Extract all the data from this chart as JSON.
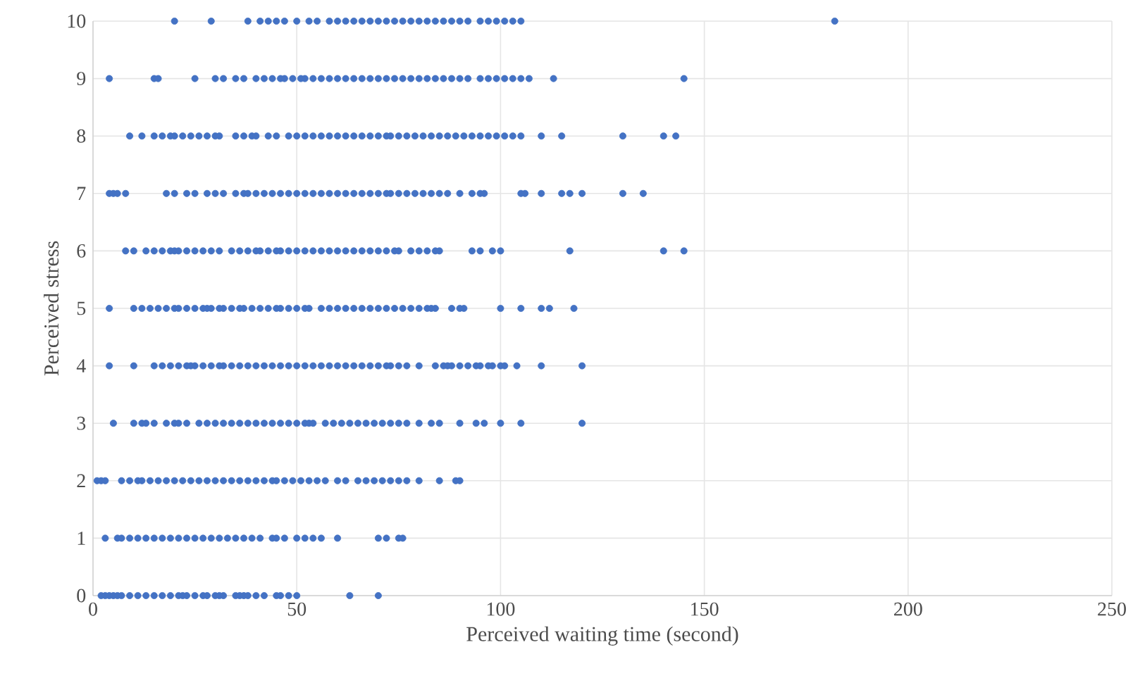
{
  "chart_data": {
    "type": "scatter",
    "xlabel": "Perceived waiting time (second)",
    "ylabel": "Perceived stress",
    "xlim": [
      0,
      250
    ],
    "ylim": [
      0,
      10
    ],
    "xticks": [
      0,
      50,
      100,
      150,
      200,
      250
    ],
    "yticks": [
      0,
      1,
      2,
      3,
      4,
      5,
      6,
      7,
      8,
      9,
      10
    ],
    "grid": true,
    "series": [
      {
        "color": "#4472c4",
        "x": [
          20,
          29,
          38,
          41,
          43,
          45,
          47,
          50,
          53,
          55,
          58,
          60,
          62,
          64,
          66,
          68,
          70,
          72,
          74,
          76,
          78,
          80,
          82,
          84,
          86,
          88,
          90,
          92,
          95,
          97,
          99,
          101,
          103,
          105,
          182
        ],
        "values": [
          10,
          10,
          10,
          10,
          10,
          10,
          10,
          10,
          10,
          10,
          10,
          10,
          10,
          10,
          10,
          10,
          10,
          10,
          10,
          10,
          10,
          10,
          10,
          10,
          10,
          10,
          10,
          10,
          10,
          10,
          10,
          10,
          10,
          10,
          10
        ]
      },
      {
        "color": "#4472c4",
        "x": [
          4,
          15,
          16,
          25,
          30,
          32,
          35,
          37,
          40,
          42,
          44,
          46,
          47,
          49,
          51,
          52,
          54,
          56,
          58,
          60,
          62,
          64,
          66,
          68,
          70,
          72,
          74,
          76,
          78,
          80,
          82,
          84,
          86,
          88,
          90,
          92,
          95,
          97,
          99,
          101,
          103,
          105,
          107,
          113,
          145
        ],
        "values": [
          9,
          9,
          9,
          9,
          9,
          9,
          9,
          9,
          9,
          9,
          9,
          9,
          9,
          9,
          9,
          9,
          9,
          9,
          9,
          9,
          9,
          9,
          9,
          9,
          9,
          9,
          9,
          9,
          9,
          9,
          9,
          9,
          9,
          9,
          9,
          9,
          9,
          9,
          9,
          9,
          9,
          9,
          9,
          9,
          9
        ]
      },
      {
        "color": "#4472c4",
        "x": [
          9,
          12,
          15,
          17,
          19,
          20,
          22,
          24,
          26,
          28,
          30,
          31,
          35,
          37,
          39,
          40,
          43,
          45,
          48,
          50,
          52,
          54,
          56,
          58,
          60,
          62,
          64,
          66,
          68,
          70,
          72,
          73,
          75,
          77,
          79,
          81,
          83,
          85,
          87,
          89,
          91,
          93,
          95,
          97,
          99,
          101,
          103,
          105,
          110,
          115,
          130,
          140,
          143
        ],
        "values": [
          8,
          8,
          8,
          8,
          8,
          8,
          8,
          8,
          8,
          8,
          8,
          8,
          8,
          8,
          8,
          8,
          8,
          8,
          8,
          8,
          8,
          8,
          8,
          8,
          8,
          8,
          8,
          8,
          8,
          8,
          8,
          8,
          8,
          8,
          8,
          8,
          8,
          8,
          8,
          8,
          8,
          8,
          8,
          8,
          8,
          8,
          8,
          8,
          8,
          8,
          8,
          8,
          8
        ]
      },
      {
        "color": "#4472c4",
        "x": [
          4,
          5,
          6,
          8,
          18,
          20,
          23,
          25,
          28,
          30,
          32,
          35,
          37,
          38,
          40,
          42,
          44,
          46,
          48,
          50,
          52,
          54,
          56,
          58,
          60,
          62,
          64,
          66,
          68,
          70,
          72,
          73,
          75,
          77,
          79,
          81,
          83,
          85,
          87,
          90,
          93,
          95,
          96,
          105,
          106,
          110,
          115,
          117,
          120,
          130,
          135
        ],
        "values": [
          7,
          7,
          7,
          7,
          7,
          7,
          7,
          7,
          7,
          7,
          7,
          7,
          7,
          7,
          7,
          7,
          7,
          7,
          7,
          7,
          7,
          7,
          7,
          7,
          7,
          7,
          7,
          7,
          7,
          7,
          7,
          7,
          7,
          7,
          7,
          7,
          7,
          7,
          7,
          7,
          7,
          7,
          7,
          7,
          7,
          7,
          7,
          7,
          7,
          7,
          7
        ]
      },
      {
        "color": "#4472c4",
        "x": [
          8,
          10,
          13,
          15,
          17,
          19,
          20,
          21,
          23,
          25,
          27,
          29,
          31,
          34,
          36,
          38,
          40,
          41,
          43,
          45,
          46,
          48,
          50,
          52,
          54,
          56,
          58,
          60,
          62,
          64,
          66,
          68,
          70,
          72,
          74,
          75,
          78,
          80,
          82,
          84,
          85,
          93,
          95,
          98,
          100,
          117,
          140,
          145
        ],
        "values": [
          6,
          6,
          6,
          6,
          6,
          6,
          6,
          6,
          6,
          6,
          6,
          6,
          6,
          6,
          6,
          6,
          6,
          6,
          6,
          6,
          6,
          6,
          6,
          6,
          6,
          6,
          6,
          6,
          6,
          6,
          6,
          6,
          6,
          6,
          6,
          6,
          6,
          6,
          6,
          6,
          6,
          6,
          6,
          6,
          6,
          6,
          6,
          6
        ]
      },
      {
        "color": "#4472c4",
        "x": [
          4,
          10,
          12,
          14,
          16,
          18,
          20,
          21,
          23,
          25,
          27,
          28,
          29,
          31,
          32,
          34,
          36,
          37,
          39,
          41,
          43,
          45,
          46,
          48,
          50,
          52,
          53,
          56,
          58,
          60,
          62,
          64,
          66,
          68,
          70,
          72,
          74,
          76,
          78,
          80,
          82,
          83,
          84,
          88,
          90,
          91,
          100,
          105,
          110,
          112,
          118
        ],
        "values": [
          5,
          5,
          5,
          5,
          5,
          5,
          5,
          5,
          5,
          5,
          5,
          5,
          5,
          5,
          5,
          5,
          5,
          5,
          5,
          5,
          5,
          5,
          5,
          5,
          5,
          5,
          5,
          5,
          5,
          5,
          5,
          5,
          5,
          5,
          5,
          5,
          5,
          5,
          5,
          5,
          5,
          5,
          5,
          5,
          5,
          5,
          5,
          5,
          5,
          5,
          5
        ]
      },
      {
        "color": "#4472c4",
        "x": [
          4,
          10,
          15,
          17,
          19,
          21,
          23,
          24,
          25,
          27,
          29,
          31,
          32,
          34,
          36,
          38,
          40,
          42,
          44,
          46,
          48,
          50,
          52,
          54,
          56,
          58,
          60,
          62,
          64,
          66,
          68,
          70,
          72,
          73,
          75,
          77,
          80,
          84,
          86,
          87,
          88,
          90,
          92,
          94,
          95,
          97,
          98,
          100,
          101,
          104,
          110,
          120
        ],
        "values": [
          4,
          4,
          4,
          4,
          4,
          4,
          4,
          4,
          4,
          4,
          4,
          4,
          4,
          4,
          4,
          4,
          4,
          4,
          4,
          4,
          4,
          4,
          4,
          4,
          4,
          4,
          4,
          4,
          4,
          4,
          4,
          4,
          4,
          4,
          4,
          4,
          4,
          4,
          4,
          4,
          4,
          4,
          4,
          4,
          4,
          4,
          4,
          4,
          4,
          4,
          4,
          4
        ]
      },
      {
        "color": "#4472c4",
        "x": [
          5,
          10,
          12,
          13,
          15,
          18,
          20,
          21,
          23,
          26,
          28,
          30,
          32,
          34,
          36,
          38,
          40,
          42,
          44,
          46,
          48,
          50,
          52,
          53,
          54,
          57,
          59,
          61,
          63,
          65,
          67,
          69,
          71,
          73,
          75,
          77,
          80,
          83,
          85,
          90,
          94,
          96,
          100,
          105,
          120
        ],
        "values": [
          3,
          3,
          3,
          3,
          3,
          3,
          3,
          3,
          3,
          3,
          3,
          3,
          3,
          3,
          3,
          3,
          3,
          3,
          3,
          3,
          3,
          3,
          3,
          3,
          3,
          3,
          3,
          3,
          3,
          3,
          3,
          3,
          3,
          3,
          3,
          3,
          3,
          3,
          3,
          3,
          3,
          3,
          3,
          3,
          3
        ]
      },
      {
        "color": "#4472c4",
        "x": [
          1,
          2,
          3,
          7,
          9,
          11,
          12,
          14,
          16,
          18,
          20,
          22,
          24,
          26,
          28,
          30,
          32,
          34,
          36,
          38,
          40,
          42,
          44,
          45,
          47,
          49,
          51,
          53,
          55,
          57,
          60,
          62,
          65,
          67,
          69,
          71,
          73,
          75,
          77,
          80,
          85,
          89,
          90
        ],
        "values": [
          2,
          2,
          2,
          2,
          2,
          2,
          2,
          2,
          2,
          2,
          2,
          2,
          2,
          2,
          2,
          2,
          2,
          2,
          2,
          2,
          2,
          2,
          2,
          2,
          2,
          2,
          2,
          2,
          2,
          2,
          2,
          2,
          2,
          2,
          2,
          2,
          2,
          2,
          2,
          2,
          2,
          2,
          2
        ]
      },
      {
        "color": "#4472c4",
        "x": [
          3,
          6,
          7,
          9,
          11,
          13,
          15,
          17,
          19,
          21,
          23,
          25,
          27,
          29,
          31,
          33,
          35,
          37,
          39,
          41,
          44,
          45,
          47,
          50,
          52,
          54,
          56,
          60,
          70,
          72,
          75,
          76
        ],
        "values": [
          1,
          1,
          1,
          1,
          1,
          1,
          1,
          1,
          1,
          1,
          1,
          1,
          1,
          1,
          1,
          1,
          1,
          1,
          1,
          1,
          1,
          1,
          1,
          1,
          1,
          1,
          1,
          1,
          1,
          1,
          1,
          1
        ]
      },
      {
        "color": "#4472c4",
        "x": [
          2,
          3,
          4,
          5,
          6,
          7,
          9,
          11,
          13,
          15,
          17,
          19,
          21,
          22,
          23,
          25,
          27,
          28,
          30,
          31,
          32,
          35,
          36,
          37,
          38,
          40,
          42,
          45,
          46,
          48,
          50,
          63,
          70
        ],
        "values": [
          0,
          0,
          0,
          0,
          0,
          0,
          0,
          0,
          0,
          0,
          0,
          0,
          0,
          0,
          0,
          0,
          0,
          0,
          0,
          0,
          0,
          0,
          0,
          0,
          0,
          0,
          0,
          0,
          0,
          0,
          0,
          0,
          0
        ]
      }
    ]
  }
}
